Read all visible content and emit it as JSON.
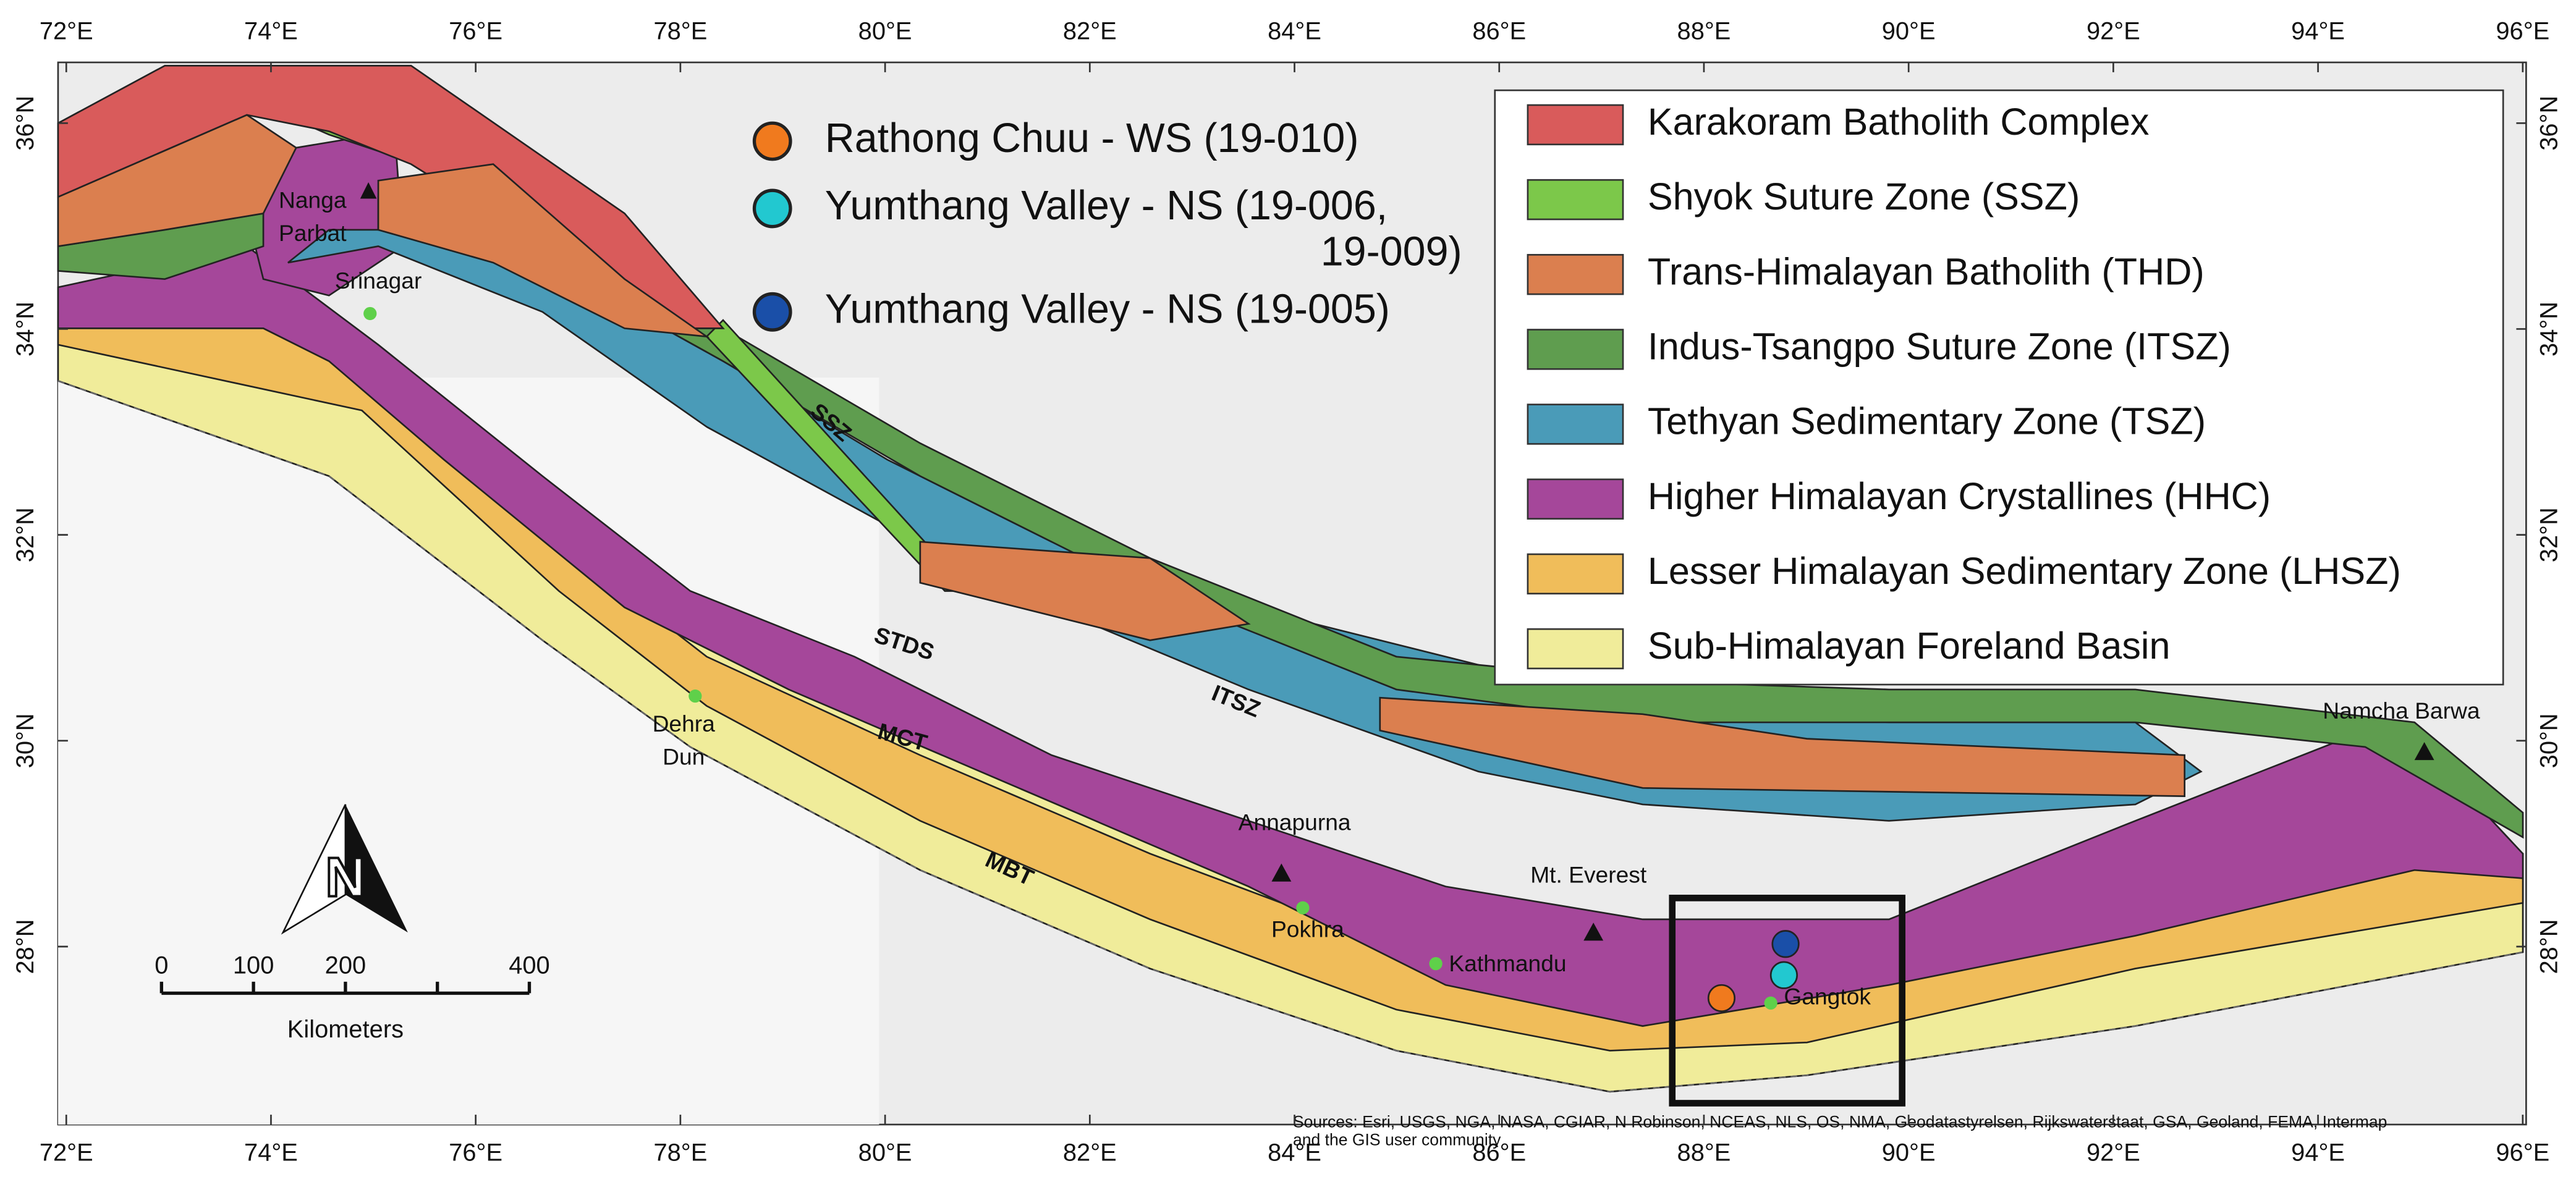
{
  "lon_ticks": [
    {
      "value": 72,
      "label": "72°E"
    },
    {
      "value": 74,
      "label": "74°E"
    },
    {
      "value": 76,
      "label": "76°E"
    },
    {
      "value": 78,
      "label": "78°E"
    },
    {
      "value": 80,
      "label": "80°E"
    },
    {
      "value": 82,
      "label": "82°E"
    },
    {
      "value": 84,
      "label": "84°E"
    },
    {
      "value": 86,
      "label": "86°E"
    },
    {
      "value": 88,
      "label": "88°E"
    },
    {
      "value": 90,
      "label": "90°E"
    },
    {
      "value": 92,
      "label": "92°E"
    },
    {
      "value": 94,
      "label": "94°E"
    },
    {
      "value": 96,
      "label": "96°E"
    }
  ],
  "lat_ticks": [
    {
      "value": 36,
      "label": "36°N"
    },
    {
      "value": 34,
      "label": "34°N"
    },
    {
      "value": 32,
      "label": "32°N"
    },
    {
      "value": 30,
      "label": "30°N"
    },
    {
      "value": 28,
      "label": "28°N"
    }
  ],
  "legend": [
    {
      "name": "Karakoram Batholith Complex",
      "color": "#d95b5b"
    },
    {
      "name": "Shyok Suture Zone (SSZ)",
      "color": "#7cc84a"
    },
    {
      "name": "Trans-Himalayan Batholith (THD)",
      "color": "#db7f4f"
    },
    {
      "name": "Indus-Tsangpo Suture Zone (ITSZ)",
      "color": "#5f9d4f"
    },
    {
      "name": "Tethyan Sedimentary Zone (TSZ)",
      "color": "#4a9bb8"
    },
    {
      "name": "Higher Himalayan Crystallines (HHC)",
      "color": "#a5479a"
    },
    {
      "name": "Lesser Himalayan Sedimentary Zone (LHSZ)",
      "color": "#f0bd5a"
    },
    {
      "name": "Sub-Himalayan Foreland Basin",
      "color": "#f0ec9a"
    }
  ],
  "samples": [
    {
      "lines": [
        "Rathong Chuu - WS (19-010)"
      ],
      "color": "#f07a1e"
    },
    {
      "lines": [
        "Yumthang Valley - NS (19-006,",
        "19-009)"
      ],
      "color": "#22c8d0"
    },
    {
      "lines": [
        "Yumthang Valley - NS (19-005)"
      ],
      "color": "#1a4fa8"
    }
  ],
  "places": {
    "nanga_parbat": [
      "Nanga",
      "Parbat"
    ],
    "srinagar": "Srinagar",
    "dehra_dun": [
      "Dehra",
      "Dun"
    ],
    "annapurna": "Annapurna",
    "pokhra": "Pokhra",
    "kathmandu": "Kathmandu",
    "everest": "Mt. Everest",
    "gangtok": "Gangtok",
    "namcha_barwa": "Namcha Barwa"
  },
  "faults": {
    "ssz": "SSZ",
    "stds": "STDS",
    "itsz": "ITSZ",
    "mct": "MCT",
    "mbt": "MBT"
  },
  "scale_bar": {
    "ticks": [
      0,
      100,
      200,
      400
    ],
    "unit": "Kilometers"
  },
  "north_arrow": "N",
  "sources": [
    "Sources: Esri, USGS, NGA, NASA, CGIAR, N Robinson, NCEAS, NLS, OS, NMA, Geodatastyrelsen, Rijkswaterstaat, GSA, Geoland, FEMA, Intermap",
    "and the GIS user community"
  ]
}
